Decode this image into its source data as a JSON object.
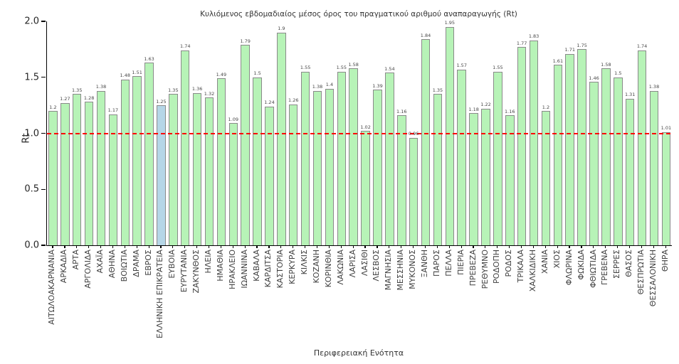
{
  "chart_data": {
    "type": "bar",
    "title": "Κυλιόμενος εβδομαδιαίος μέσος όρος του πραγματικού αριθμού αναπαραγωγής (Rt)",
    "xlabel": "Περιφερειακή Ενότητα",
    "ylabel": "Rt",
    "ylim": [
      0,
      2.0
    ],
    "yticks": [
      "0.0",
      "0.5",
      "1.0",
      "1.5",
      "2.0"
    ],
    "grid": false,
    "legend": "none",
    "reference_line_y": 1.0,
    "highlight_category": "ΕΛΛΗΝΙΚΗ ΕΠΙΚΡΑΤΕΙΑ",
    "highlight_index": 9,
    "categories": [
      "ΑΙΤΩΛΟΑΚΑΡΝΑΝΙΑ",
      "ΑΡΚΑΔΙΑ",
      "ΑΡΤΑ",
      "ΑΡΓΟΛΙΔΑ",
      "ΑΧΑΪΑ",
      "ΑΘΗΝΑ",
      "ΒΟΙΩΤΙΑ",
      "ΔΡΑΜΑ",
      "ΕΒΡΟΣ",
      "ΕΛΛΗΝΙΚΗ ΕΠΙΚΡΑΤΕΙΑ",
      "ΕΥΒΟΙΑ",
      "ΕΥΡΥΤΑΝΙΑ",
      "ΖΑΚΥΝΘΟΣ",
      "ΗΛΕΙΑ",
      "ΗΜΑΘΙΑ",
      "ΗΡΑΚΛΕΙΟ",
      "ΙΩΑΝΝΙΝΑ",
      "ΚΑΒΑΛΑ",
      "ΚΑΡΔΙΤΣΑ",
      "ΚΑΣΤΟΡΙΑ",
      "ΚΕΡΚΥΡΑ",
      "ΚΙΛΚΙΣ",
      "ΚΟΖΑΝΗ",
      "ΚΟΡΙΝΘΙΑ",
      "ΛΑΚΩΝΙΑ",
      "ΛΑΡΙΣΑ",
      "ΛΑΣΙΘΙ",
      "ΛΕΣΒΟΣ",
      "ΜΑΓΝΗΣΙΑ",
      "ΜΕΣΣΗΝΙΑ",
      "ΜΥΚΟΝΟΣ",
      "ΞΑΝΘΗ",
      "ΠΑΡΟΣ",
      "ΠΕΛΛΑ",
      "ΠΙΕΡΙΑ",
      "ΠΡΕΒΕΖΑ",
      "ΡΕΘΥΜΝΟ",
      "ΡΟΔΟΠΗ",
      "ΡΟΔΟΣ",
      "ΤΡΙΚΑΛΑ",
      "ΧΑΛΚΙΔΙΚΗ",
      "ΧΑΝΙΑ",
      "ΧΙΟΣ",
      "ΦΛΩΡΙΝΑ",
      "ΦΩΚΙΔΑ",
      "ΦΘΙΩΤΙΔΑ",
      "ΓΡΕΒΕΝΑ",
      "ΣΕΡΡΕΣ",
      "ΘΑΣΟΣ",
      "ΘΕΣΠΡΩΤΙΑ",
      "ΘΕΣΣΑΛΟΝΙΚΗ",
      "ΘΗΡΑ"
    ],
    "values": [
      1.2,
      1.27,
      1.35,
      1.28,
      1.38,
      1.17,
      1.48,
      1.51,
      1.63,
      1.25,
      1.35,
      1.74,
      1.36,
      1.32,
      1.49,
      1.09,
      1.79,
      1.5,
      1.24,
      1.9,
      1.26,
      1.55,
      1.38,
      1.4,
      1.55,
      1.58,
      1.02,
      1.39,
      1.54,
      1.16,
      0.96,
      1.84,
      1.35,
      1.95,
      1.57,
      1.18,
      1.22,
      1.55,
      1.16,
      1.77,
      1.83,
      1.2,
      1.61,
      1.71,
      1.75,
      1.46,
      1.58,
      1.5,
      1.31,
      1.74,
      1.38,
      1.01
    ],
    "value_labels": [
      "1.2",
      "1.27",
      "1.35",
      "1.28",
      "1.38",
      "1.17",
      "1.48",
      "1.51",
      "1.63",
      "1.25",
      "1.35",
      "1.74",
      "1.36",
      "1.32",
      "1.49",
      "1.09",
      "1.79",
      "1.5",
      "1.24",
      "1.9",
      "1.26",
      "1.55",
      "1.38",
      "1.4",
      "1.55",
      "1.58",
      "1.02",
      "1.39",
      "1.54",
      "1.16",
      "0.96",
      "1.84",
      "1.35",
      "1.95",
      "1.57",
      "1.18",
      "1.22",
      "1.55",
      "1.16",
      "1.77",
      "1.83",
      "1.2",
      "1.61",
      "1.71",
      "1.75",
      "1.46",
      "1.58",
      "1.5",
      "1.31",
      "1.74",
      "1.38",
      "1.01"
    ]
  },
  "colors": {
    "bar_fill": "#b7f3b7",
    "bar_border": "#8a8a8a",
    "highlight_fill": "#b5d6e7",
    "reference_line": "#ff0000",
    "value_label_text": "#474747",
    "axis_text": "#262626"
  }
}
